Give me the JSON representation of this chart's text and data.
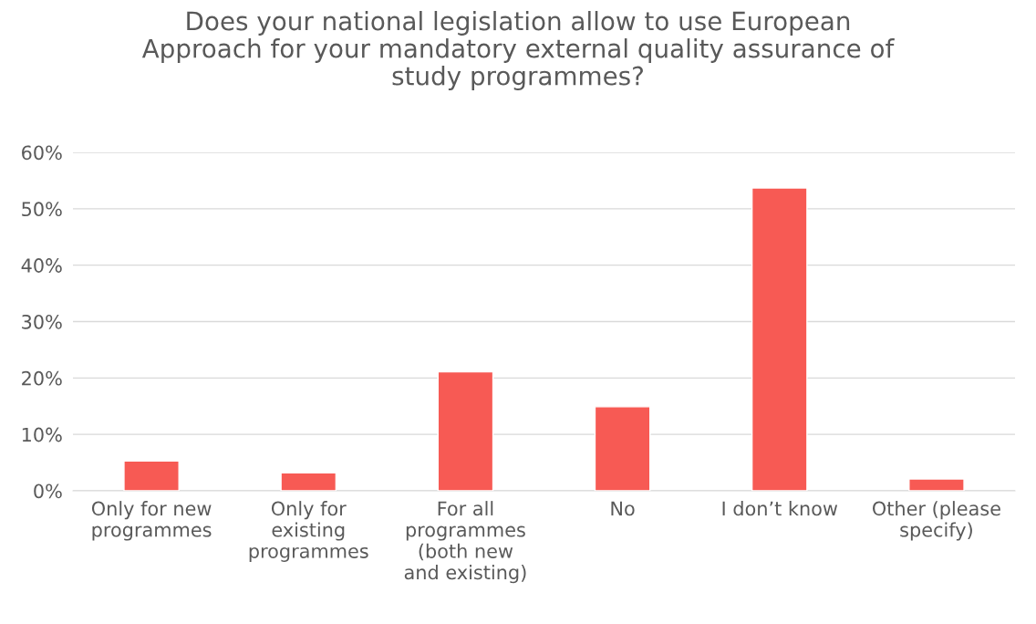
{
  "chart_data": {
    "type": "bar",
    "title": "Does your national legislation allow to use European\nApproach for your mandatory external quality assurance of\nstudy programmes?",
    "categories": [
      "Only for new\nprogrammes",
      "Only for\nexisting\nprogrammes",
      "For all\nprogrammes\n(both new\nand existing)",
      "No",
      "I don’t know",
      "Other (please\nspecify)"
    ],
    "values": [
      5.3,
      3.2,
      21.1,
      14.9,
      53.7,
      2.1
    ],
    "color": "#f75a54",
    "ylim": [
      0,
      60
    ],
    "yticks": [
      {
        "value": 0,
        "label": "0%"
      },
      {
        "value": 10,
        "label": "10%"
      },
      {
        "value": 20,
        "label": "20%"
      },
      {
        "value": 30,
        "label": "30%"
      },
      {
        "value": 40,
        "label": "40%"
      },
      {
        "value": 50,
        "label": "50%"
      },
      {
        "value": 60,
        "label": "60%"
      }
    ],
    "grid": "y"
  }
}
